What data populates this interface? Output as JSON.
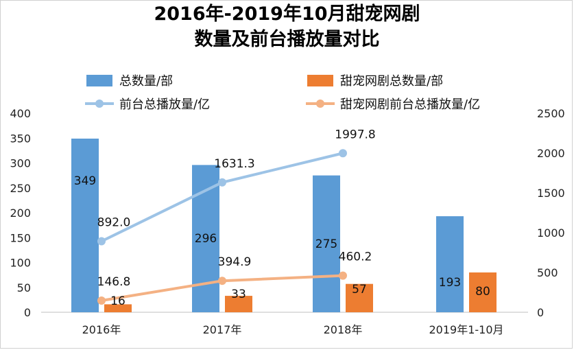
{
  "chart_data": {
    "type": "bar",
    "title": [
      "2016年-2019年10月甜宠网剧",
      "数量及前台播放量对比"
    ],
    "categories": [
      "2016年",
      "2017年",
      "2018年",
      "2019年1-10月"
    ],
    "series": [
      {
        "name": "总数量/部",
        "type": "bar",
        "axis": "left",
        "color": "#5b9bd5",
        "values": [
          349,
          296,
          275,
          193
        ]
      },
      {
        "name": "甜宠网剧总数量/部",
        "type": "bar",
        "axis": "left",
        "color": "#ed7d31",
        "values": [
          16,
          33,
          57,
          80
        ]
      },
      {
        "name": "前台总播放量/亿",
        "type": "line",
        "axis": "right",
        "color": "#9dc3e6",
        "values": [
          892.0,
          1631.3,
          1997.8,
          null
        ]
      },
      {
        "name": "甜宠网剧前台总播放量/亿",
        "type": "line",
        "axis": "right",
        "color": "#f4b183",
        "values": [
          146.8,
          394.9,
          460.2,
          null
        ]
      }
    ],
    "y_left": {
      "range": [
        0,
        400
      ],
      "ticks": [
        "0",
        "50",
        "100",
        "150",
        "200",
        "250",
        "300",
        "350",
        "400"
      ]
    },
    "y_right": {
      "range": [
        0,
        2500
      ],
      "ticks": [
        "0",
        "500",
        "1000",
        "1500",
        "2000",
        "2500"
      ]
    },
    "data_labels": {
      "series_0": [
        "349",
        "296",
        "275",
        "193"
      ],
      "series_1": [
        "16",
        "33",
        "57",
        "80"
      ],
      "series_2": [
        "892.0",
        "1631.3",
        "1997.8"
      ],
      "series_3": [
        "146.8",
        "394.9",
        "460.2"
      ]
    },
    "grid": false,
    "legend_position": "top"
  }
}
